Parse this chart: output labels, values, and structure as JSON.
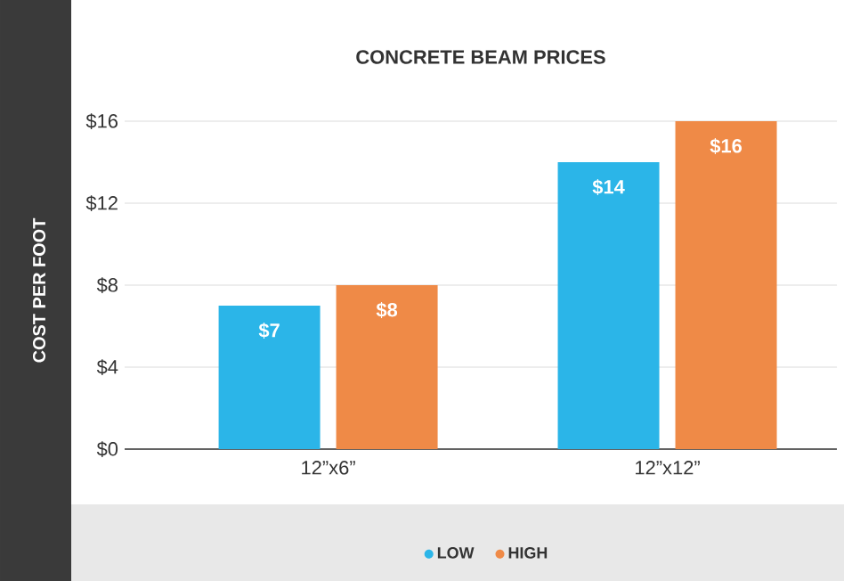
{
  "chart_data": {
    "type": "bar",
    "title": "CONCRETE BEAM PRICES",
    "ylabel": "COST PER FOOT",
    "categories": [
      "12”x6”",
      "12”x12”"
    ],
    "series": [
      {
        "name": "LOW",
        "color": "#2bb5e8",
        "values": [
          7,
          14
        ],
        "value_labels": [
          "$7",
          "$14"
        ]
      },
      {
        "name": "HIGH",
        "color": "#ef8a47",
        "values": [
          8,
          16
        ],
        "value_labels": [
          "$8",
          "$16"
        ]
      }
    ],
    "ylim": [
      0,
      16
    ],
    "yticks": [
      {
        "value": 0,
        "label": "$0"
      },
      {
        "value": 4,
        "label": "$4"
      },
      {
        "value": 8,
        "label": "$8"
      },
      {
        "value": 12,
        "label": "$12"
      },
      {
        "value": 16,
        "label": "$16"
      }
    ],
    "grid": "y",
    "legend": "bottom"
  }
}
